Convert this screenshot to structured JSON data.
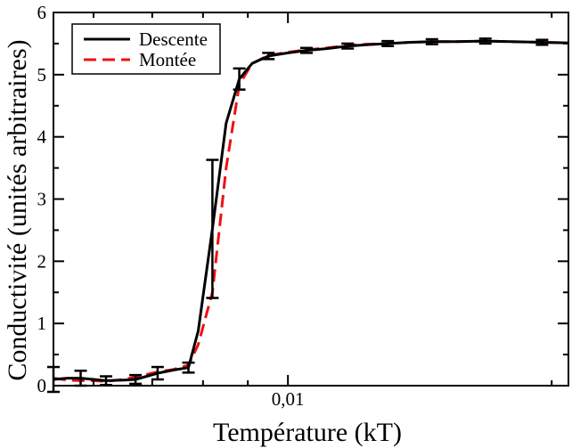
{
  "chart_data": {
    "type": "line",
    "title": "",
    "xlabel": "Température (kT)",
    "ylabel": "Conductivité (unités arbitraires)",
    "x_scale": "log",
    "xlim": [
      0.0054,
      0.0209
    ],
    "ylim": [
      0,
      6
    ],
    "y_ticks": [
      {
        "value": 0,
        "label": "0"
      },
      {
        "value": 1,
        "label": "1"
      },
      {
        "value": 2,
        "label": "2"
      },
      {
        "value": 3,
        "label": "3"
      },
      {
        "value": 4,
        "label": "4"
      },
      {
        "value": 5,
        "label": "5"
      },
      {
        "value": 6,
        "label": "6"
      }
    ],
    "x_ticks": [
      {
        "value": 0.01,
        "label": "0,01"
      }
    ],
    "legend_position": "top-left",
    "series": [
      {
        "name": "Descente",
        "color": "#000000",
        "style": "solid",
        "x": [
          0.0054,
          0.0056,
          0.0058,
          0.006,
          0.0062,
          0.0065,
          0.0067,
          0.0069,
          0.0071,
          0.0074,
          0.0077,
          0.0079,
          0.0082,
          0.0085,
          0.0088,
          0.0091,
          0.0095,
          0.01,
          0.0105,
          0.0111,
          0.0117,
          0.0123,
          0.013,
          0.0138,
          0.0146,
          0.0155,
          0.0168,
          0.018,
          0.0195,
          0.0209
        ],
        "y": [
          0.1,
          0.12,
          0.12,
          0.1,
          0.08,
          0.09,
          0.1,
          0.15,
          0.2,
          0.25,
          0.29,
          0.88,
          2.52,
          4.22,
          4.93,
          5.18,
          5.3,
          5.35,
          5.39,
          5.42,
          5.46,
          5.48,
          5.5,
          5.52,
          5.53,
          5.53,
          5.54,
          5.53,
          5.52,
          5.51
        ],
        "err": [
          0.2,
          0.13,
          0.12,
          0.08,
          0.07,
          0.06,
          0.07,
          0.12,
          0.1,
          0.1,
          0.08,
          0.78,
          1.11,
          0.69,
          0.17,
          0.06,
          0.05,
          0.04,
          0.04,
          0.04,
          0.04,
          0.04,
          0.04,
          0.04,
          0.04,
          0.04,
          0.04,
          0.04,
          0.04,
          0.04
        ]
      },
      {
        "name": "Montée",
        "color": "#ee1111",
        "style": "dashed",
        "x": [
          0.0054,
          0.0056,
          0.0058,
          0.006,
          0.0062,
          0.0065,
          0.0067,
          0.0069,
          0.0071,
          0.0074,
          0.0077,
          0.0079,
          0.0082,
          0.0085,
          0.0088,
          0.0091,
          0.0095,
          0.01,
          0.0105,
          0.0111,
          0.0117,
          0.0123,
          0.013,
          0.0138,
          0.0146,
          0.0155,
          0.0168,
          0.018,
          0.0195,
          0.0209
        ],
        "y": [
          0.12,
          0.09,
          0.08,
          0.08,
          0.07,
          0.1,
          0.14,
          0.18,
          0.22,
          0.26,
          0.33,
          0.66,
          1.5,
          3.5,
          4.84,
          5.18,
          5.31,
          5.36,
          5.4,
          5.43,
          5.47,
          5.49,
          5.5,
          5.52,
          5.53,
          5.53,
          5.54,
          5.53,
          5.52,
          5.51
        ]
      }
    ]
  }
}
